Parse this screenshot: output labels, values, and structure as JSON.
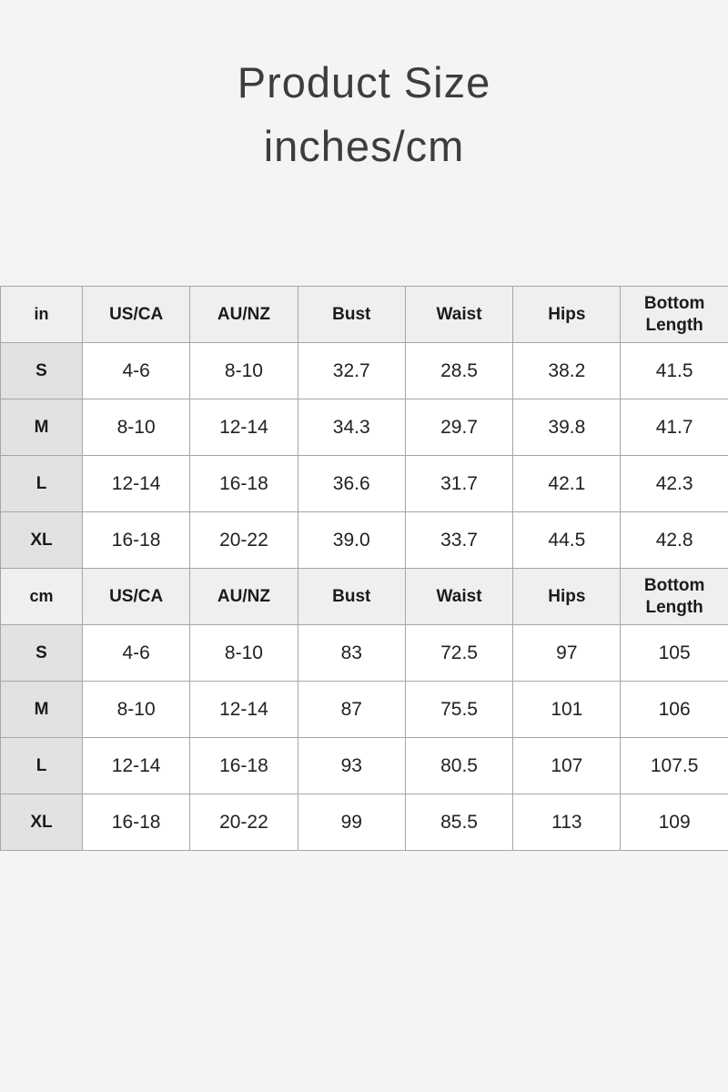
{
  "title": {
    "line1": "Product Size",
    "line2": "inches/cm"
  },
  "size_chart": {
    "columns": [
      "US/CA",
      "AU/NZ",
      "Bust",
      "Waist",
      "Hips",
      "Bottom Length"
    ],
    "sections": [
      {
        "unit": "in",
        "rows": [
          {
            "size": "S",
            "values": [
              "4-6",
              "8-10",
              "32.7",
              "28.5",
              "38.2",
              "41.5"
            ]
          },
          {
            "size": "M",
            "values": [
              "8-10",
              "12-14",
              "34.3",
              "29.7",
              "39.8",
              "41.7"
            ]
          },
          {
            "size": "L",
            "values": [
              "12-14",
              "16-18",
              "36.6",
              "31.7",
              "42.1",
              "42.3"
            ]
          },
          {
            "size": "XL",
            "values": [
              "16-18",
              "20-22",
              "39.0",
              "33.7",
              "44.5",
              "42.8"
            ]
          }
        ]
      },
      {
        "unit": "cm",
        "rows": [
          {
            "size": "S",
            "values": [
              "4-6",
              "8-10",
              "83",
              "72.5",
              "97",
              "105"
            ]
          },
          {
            "size": "M",
            "values": [
              "8-10",
              "12-14",
              "87",
              "75.5",
              "101",
              "106"
            ]
          },
          {
            "size": "L",
            "values": [
              "12-14",
              "16-18",
              "93",
              "80.5",
              "107",
              "107.5"
            ]
          },
          {
            "size": "XL",
            "values": [
              "16-18",
              "20-22",
              "99",
              "85.5",
              "113",
              "109"
            ]
          }
        ]
      }
    ]
  },
  "colors": {
    "page_background": "#f4f4f4",
    "header_cell_background": "#efefef",
    "size_label_cell_background": "#e2e2e2",
    "value_cell_background": "#ffffff",
    "table_border": "#a6a6a6",
    "title_text": "#3d3d3d",
    "cell_text": "#1b1b1b"
  }
}
